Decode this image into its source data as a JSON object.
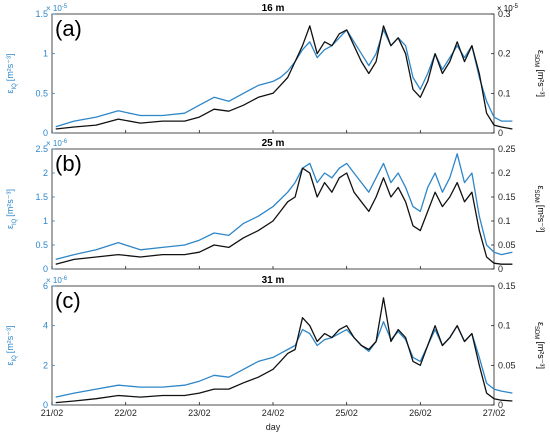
{
  "colors": {
    "blue": "#2e86c8",
    "black": "#111111",
    "axis": "#222222"
  },
  "figure": {
    "xlabel": "day"
  },
  "chart_data": [
    {
      "type": "line",
      "letter": "(a)",
      "title": "16 m",
      "ylabel_left_base": "ε",
      "ylabel_left_sub": "IQ",
      "ylabel_left_unit": "[m²s⁻³]",
      "ylabel_right_base": "ε",
      "ylabel_right_sub": "SDM",
      "ylabel_right_unit": "[m²s⁻³]",
      "exponent_base": "× 10",
      "exponent": "-5",
      "xlim": [
        0,
        6
      ],
      "x_ticks": [
        0,
        1,
        2,
        3,
        4,
        5,
        6
      ],
      "x_tick_labels": [
        "21/02",
        "22/02",
        "23/02",
        "24/02",
        "25/02",
        "26/02",
        "27/02"
      ],
      "ylim_left": [
        0,
        1.5
      ],
      "yticks_left": [
        0,
        0.5,
        1,
        1.5
      ],
      "ytick_labels_left": [
        "0",
        "0.5",
        "1",
        "1.5"
      ],
      "ylim_right": [
        0,
        0.3
      ],
      "yticks_right": [
        0,
        0.1,
        0.2,
        0.3
      ],
      "ytick_labels_right": [
        "0",
        "0.1",
        "0.2",
        "0.3"
      ],
      "series": [
        {
          "axis": "left",
          "color": "#2e86c8",
          "x": [
            0.05,
            0.3,
            0.6,
            0.9,
            1.2,
            1.5,
            1.8,
            2.0,
            2.2,
            2.4,
            2.6,
            2.8,
            3.0,
            3.1,
            3.2,
            3.3,
            3.4,
            3.5,
            3.6,
            3.7,
            3.8,
            3.9,
            4.0,
            4.1,
            4.2,
            4.3,
            4.4,
            4.5,
            4.6,
            4.7,
            4.8,
            4.9,
            5.0,
            5.1,
            5.2,
            5.3,
            5.4,
            5.5,
            5.6,
            5.7,
            5.8,
            5.9,
            6.0,
            6.1,
            6.25
          ],
          "y": [
            0.08,
            0.15,
            0.2,
            0.28,
            0.22,
            0.22,
            0.25,
            0.35,
            0.45,
            0.4,
            0.5,
            0.6,
            0.65,
            0.7,
            0.78,
            0.9,
            1.05,
            1.15,
            0.95,
            1.05,
            1.1,
            1.2,
            1.3,
            1.15,
            1.0,
            0.85,
            1.0,
            1.3,
            1.1,
            1.2,
            1.1,
            0.7,
            0.55,
            0.75,
            1.0,
            0.8,
            0.95,
            1.1,
            0.95,
            1.1,
            0.7,
            0.4,
            0.2,
            0.15,
            0.15
          ]
        },
        {
          "axis": "right",
          "color": "#111111",
          "x": [
            0.05,
            0.3,
            0.6,
            0.9,
            1.2,
            1.5,
            1.8,
            2.0,
            2.2,
            2.4,
            2.6,
            2.8,
            3.0,
            3.1,
            3.2,
            3.3,
            3.4,
            3.5,
            3.6,
            3.7,
            3.8,
            3.9,
            4.0,
            4.1,
            4.2,
            4.3,
            4.4,
            4.5,
            4.6,
            4.7,
            4.8,
            4.9,
            5.0,
            5.1,
            5.2,
            5.3,
            5.4,
            5.5,
            5.6,
            5.7,
            5.8,
            5.9,
            6.0,
            6.1,
            6.25
          ],
          "y": [
            0.01,
            0.015,
            0.02,
            0.035,
            0.025,
            0.03,
            0.03,
            0.04,
            0.06,
            0.055,
            0.07,
            0.09,
            0.1,
            0.12,
            0.14,
            0.18,
            0.22,
            0.27,
            0.2,
            0.23,
            0.22,
            0.25,
            0.26,
            0.22,
            0.18,
            0.15,
            0.18,
            0.27,
            0.22,
            0.24,
            0.2,
            0.11,
            0.09,
            0.13,
            0.2,
            0.15,
            0.18,
            0.23,
            0.18,
            0.22,
            0.15,
            0.05,
            0.02,
            0.015,
            0.01
          ]
        }
      ]
    },
    {
      "type": "line",
      "letter": "(b)",
      "title": "25 m",
      "ylabel_left_base": "ε",
      "ylabel_left_sub": "IQ",
      "ylabel_left_unit": "[m²s⁻³]",
      "ylabel_right_base": "ε",
      "ylabel_right_sub": "SDM",
      "ylabel_right_unit": "[m²s⁻³]",
      "exponent_base": "× 10",
      "exponent": "-6",
      "xlim": [
        0,
        6
      ],
      "x_ticks": [
        0,
        1,
        2,
        3,
        4,
        5,
        6
      ],
      "x_tick_labels": [
        "21/02",
        "22/02",
        "23/02",
        "24/02",
        "25/02",
        "26/02",
        "27/02"
      ],
      "ylim_left": [
        0,
        2.5
      ],
      "yticks_left": [
        0,
        0.5,
        1,
        1.5,
        2,
        2.5
      ],
      "ytick_labels_left": [
        "0",
        "0.5",
        "1",
        "1.5",
        "2",
        "2.5"
      ],
      "ylim_right": [
        0,
        0.25
      ],
      "yticks_right": [
        0,
        0.05,
        0.1,
        0.15,
        0.2,
        0.25
      ],
      "ytick_labels_right": [
        "0",
        "0.05",
        "0.1",
        "0.15",
        "0.2",
        "0.25"
      ],
      "series": [
        {
          "axis": "left",
          "color": "#2e86c8",
          "x": [
            0.05,
            0.3,
            0.6,
            0.9,
            1.2,
            1.5,
            1.8,
            2.0,
            2.2,
            2.4,
            2.6,
            2.8,
            3.0,
            3.1,
            3.2,
            3.3,
            3.4,
            3.5,
            3.6,
            3.7,
            3.8,
            3.9,
            4.0,
            4.1,
            4.2,
            4.3,
            4.4,
            4.5,
            4.6,
            4.7,
            4.8,
            4.9,
            5.0,
            5.1,
            5.2,
            5.3,
            5.4,
            5.5,
            5.6,
            5.7,
            5.8,
            5.9,
            6.0,
            6.1,
            6.25
          ],
          "y": [
            0.2,
            0.3,
            0.4,
            0.55,
            0.4,
            0.45,
            0.5,
            0.6,
            0.75,
            0.7,
            0.95,
            1.1,
            1.3,
            1.45,
            1.6,
            1.8,
            2.1,
            2.2,
            1.8,
            2.0,
            1.9,
            2.1,
            2.2,
            2.0,
            1.8,
            1.6,
            1.9,
            2.2,
            1.8,
            2.0,
            1.7,
            1.3,
            1.2,
            1.7,
            2.0,
            1.6,
            1.9,
            2.4,
            1.8,
            2.0,
            1.1,
            0.5,
            0.35,
            0.3,
            0.35
          ]
        },
        {
          "axis": "right",
          "color": "#111111",
          "x": [
            0.05,
            0.3,
            0.6,
            0.9,
            1.2,
            1.5,
            1.8,
            2.0,
            2.2,
            2.4,
            2.6,
            2.8,
            3.0,
            3.1,
            3.2,
            3.3,
            3.4,
            3.5,
            3.6,
            3.7,
            3.8,
            3.9,
            4.0,
            4.1,
            4.2,
            4.3,
            4.4,
            4.5,
            4.6,
            4.7,
            4.8,
            4.9,
            5.0,
            5.1,
            5.2,
            5.3,
            5.4,
            5.5,
            5.6,
            5.7,
            5.8,
            5.9,
            6.0,
            6.1,
            6.25
          ],
          "y": [
            0.01,
            0.02,
            0.025,
            0.03,
            0.025,
            0.03,
            0.03,
            0.035,
            0.05,
            0.045,
            0.065,
            0.08,
            0.1,
            0.12,
            0.14,
            0.15,
            0.21,
            0.2,
            0.15,
            0.18,
            0.16,
            0.19,
            0.2,
            0.16,
            0.14,
            0.12,
            0.15,
            0.19,
            0.15,
            0.17,
            0.14,
            0.09,
            0.08,
            0.12,
            0.16,
            0.13,
            0.15,
            0.18,
            0.14,
            0.16,
            0.08,
            0.025,
            0.012,
            0.01,
            0.01
          ]
        }
      ]
    },
    {
      "type": "line",
      "letter": "(c)",
      "title": "31 m",
      "ylabel_left_base": "ε",
      "ylabel_left_sub": "IQ",
      "ylabel_left_unit": "[m²s⁻³]",
      "ylabel_right_base": "ε",
      "ylabel_right_sub": "SDM",
      "ylabel_right_unit": "[m²s⁻³]",
      "exponent_base": "× 10",
      "exponent": "-6",
      "xlim": [
        0,
        6
      ],
      "x_ticks": [
        0,
        1,
        2,
        3,
        4,
        5,
        6
      ],
      "x_tick_labels": [
        "21/02",
        "22/02",
        "23/02",
        "24/02",
        "25/02",
        "26/02",
        "27/02"
      ],
      "ylim_left": [
        0,
        6
      ],
      "yticks_left": [
        0,
        2,
        4,
        6
      ],
      "ytick_labels_left": [
        "0",
        "2",
        "4",
        "6"
      ],
      "ylim_right": [
        0,
        0.15
      ],
      "yticks_right": [
        0,
        0.05,
        0.1,
        0.15
      ],
      "ytick_labels_right": [
        "0",
        "0.05",
        "0.1",
        "0.15"
      ],
      "series": [
        {
          "axis": "left",
          "color": "#2e86c8",
          "x": [
            0.05,
            0.3,
            0.6,
            0.9,
            1.2,
            1.5,
            1.8,
            2.0,
            2.2,
            2.4,
            2.6,
            2.8,
            3.0,
            3.1,
            3.2,
            3.3,
            3.4,
            3.5,
            3.6,
            3.7,
            3.8,
            3.9,
            4.0,
            4.1,
            4.2,
            4.3,
            4.4,
            4.5,
            4.6,
            4.7,
            4.8,
            4.9,
            5.0,
            5.1,
            5.2,
            5.3,
            5.4,
            5.5,
            5.6,
            5.7,
            5.8,
            5.9,
            6.0,
            6.1,
            6.25
          ],
          "y": [
            0.4,
            0.6,
            0.8,
            1.0,
            0.9,
            0.9,
            1.0,
            1.2,
            1.5,
            1.4,
            1.8,
            2.2,
            2.4,
            2.6,
            2.8,
            3.0,
            3.8,
            3.6,
            3.0,
            3.3,
            3.4,
            3.6,
            3.8,
            3.4,
            3.0,
            2.7,
            3.2,
            4.2,
            3.3,
            3.7,
            3.3,
            2.4,
            2.2,
            3.0,
            3.8,
            3.0,
            3.4,
            4.0,
            3.2,
            3.6,
            2.4,
            1.1,
            0.8,
            0.7,
            0.6
          ]
        },
        {
          "axis": "right",
          "color": "#111111",
          "x": [
            0.05,
            0.3,
            0.6,
            0.9,
            1.2,
            1.5,
            1.8,
            2.0,
            2.2,
            2.4,
            2.6,
            2.8,
            3.0,
            3.1,
            3.2,
            3.3,
            3.4,
            3.5,
            3.6,
            3.7,
            3.8,
            3.9,
            4.0,
            4.1,
            4.2,
            4.3,
            4.4,
            4.5,
            4.6,
            4.7,
            4.8,
            4.9,
            5.0,
            5.1,
            5.2,
            5.3,
            5.4,
            5.5,
            5.6,
            5.7,
            5.8,
            5.9,
            6.0,
            6.1,
            6.25
          ],
          "y": [
            0.003,
            0.005,
            0.008,
            0.012,
            0.01,
            0.012,
            0.012,
            0.015,
            0.02,
            0.02,
            0.028,
            0.035,
            0.045,
            0.055,
            0.065,
            0.07,
            0.11,
            0.1,
            0.08,
            0.09,
            0.085,
            0.095,
            0.1,
            0.085,
            0.075,
            0.07,
            0.08,
            0.135,
            0.08,
            0.095,
            0.085,
            0.055,
            0.05,
            0.075,
            0.1,
            0.075,
            0.085,
            0.1,
            0.08,
            0.09,
            0.05,
            0.015,
            0.008,
            0.006,
            0.005
          ]
        }
      ]
    }
  ]
}
